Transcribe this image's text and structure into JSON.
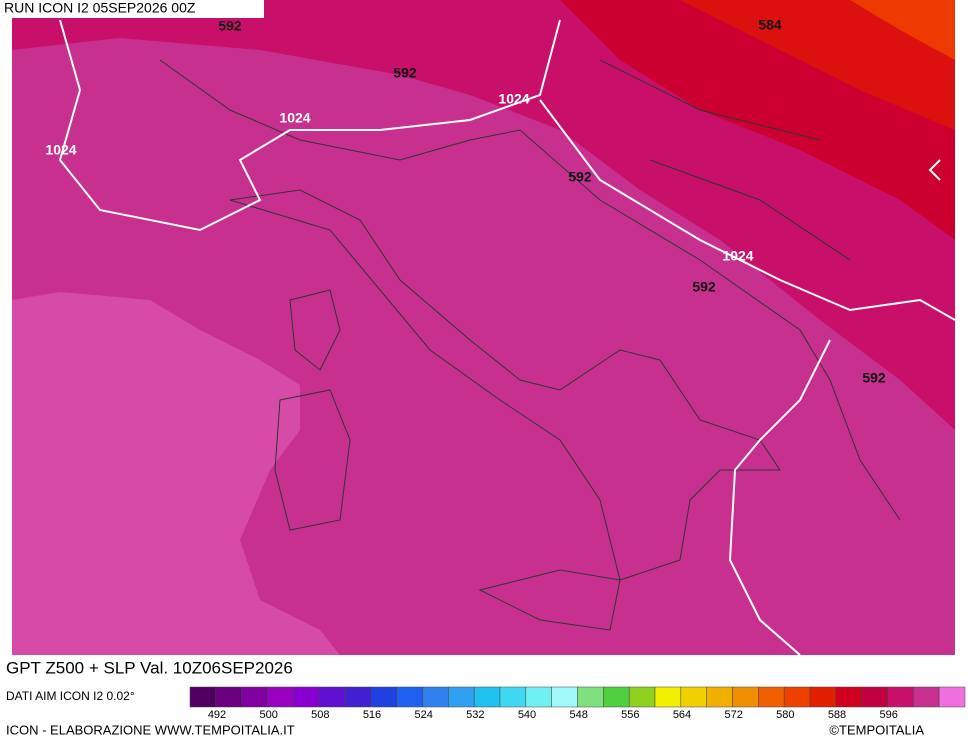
{
  "header": {
    "run": "RUN ICON I2 05SEP2026 00Z"
  },
  "map": {
    "labels": [
      "592",
      "592",
      "592",
      "592",
      "592",
      "584",
      "1024",
      "1024",
      "1024",
      "1024"
    ]
  },
  "title": "GPT Z500 + SLP Val. 10Z06SEP2026",
  "source": "DATI AIM ICON I2 0.02°",
  "legend": {
    "colors": [
      "#500060",
      "#6a0080",
      "#8000a0",
      "#9a00c0",
      "#8800d0",
      "#6010d0",
      "#4020d0",
      "#2040e0",
      "#2060f0",
      "#3080f0",
      "#30a0f0",
      "#20c0f0",
      "#40d8f0",
      "#70f0f0",
      "#a0f8f8",
      "#80e080",
      "#50d040",
      "#90d020",
      "#f0f000",
      "#f0d000",
      "#f0b000",
      "#f09000",
      "#f06000",
      "#f04000",
      "#e02000",
      "#d00020",
      "#c00040",
      "#c8106a",
      "#c8308f",
      "#f070e0"
    ],
    "ticks": [
      492,
      500,
      508,
      516,
      524,
      532,
      540,
      548,
      556,
      564,
      572,
      580,
      588,
      596
    ]
  },
  "footer": {
    "credit": "ICON - ELABORAZIONE WWW.TEMPOITALIA.IT",
    "copyright": "©TEMPOITALIA"
  }
}
